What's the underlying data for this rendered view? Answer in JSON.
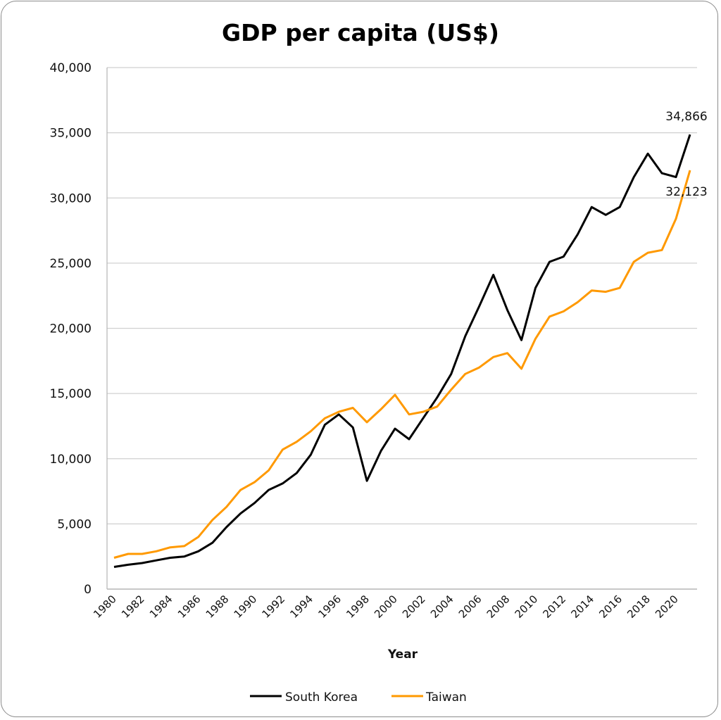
{
  "chart_data": {
    "type": "line",
    "title": "GDP per capita (US$)",
    "xlabel": "Year",
    "ylabel": "",
    "ylim": [
      0,
      40000
    ],
    "yticks": [
      0,
      5000,
      10000,
      15000,
      20000,
      25000,
      30000,
      35000,
      40000
    ],
    "ytick_labels": [
      "0",
      "5,000",
      "10,000",
      "15,000",
      "20,000",
      "25,000",
      "30,000",
      "35,000",
      "40,000"
    ],
    "xlim": [
      1980,
      2021
    ],
    "xtick_labels": [
      "1980",
      "1982",
      "1984",
      "1986",
      "1988",
      "1990",
      "1992",
      "1994",
      "1996",
      "1998",
      "2000",
      "2002",
      "2004",
      "2006",
      "2008",
      "2010",
      "2012",
      "2014",
      "2016",
      "2018",
      "2020"
    ],
    "grid": "horizontal",
    "legend_position": "bottom",
    "x": [
      1980,
      1981,
      1982,
      1983,
      1984,
      1985,
      1986,
      1987,
      1988,
      1989,
      1990,
      1991,
      1992,
      1993,
      1994,
      1995,
      1996,
      1997,
      1998,
      1999,
      2000,
      2001,
      2002,
      2003,
      2004,
      2005,
      2006,
      2007,
      2008,
      2009,
      2010,
      2011,
      2012,
      2013,
      2014,
      2015,
      2016,
      2017,
      2018,
      2019,
      2020,
      2021
    ],
    "series": [
      {
        "name": "South Korea",
        "color": "#000000",
        "values": [
          1700,
          1870,
          2000,
          2200,
          2400,
          2500,
          2900,
          3550,
          4750,
          5800,
          6600,
          7600,
          8100,
          8900,
          10300,
          12600,
          13400,
          12400,
          8300,
          10600,
          12300,
          11500,
          13100,
          14700,
          16500,
          19400,
          21700,
          24100,
          21400,
          19100,
          23100,
          25100,
          25500,
          27200,
          29300,
          28700,
          29300,
          31600,
          33400,
          31900,
          31600,
          34866
        ],
        "end_label": "34,866"
      },
      {
        "name": "Taiwan",
        "color": "#FF9900",
        "values": [
          2400,
          2700,
          2700,
          2900,
          3200,
          3300,
          4000,
          5300,
          6300,
          7600,
          8200,
          9100,
          10700,
          11300,
          12100,
          13100,
          13600,
          13900,
          12800,
          13800,
          14900,
          13400,
          13600,
          14000,
          15300,
          16500,
          17000,
          17800,
          18100,
          16900,
          19200,
          20900,
          21300,
          22000,
          22900,
          22800,
          23100,
          25100,
          25800,
          26000,
          28400,
          32123
        ],
        "end_label": "32,123"
      }
    ]
  },
  "colors": {
    "gridline": "#d0d0d0",
    "axis": "#b5b5b5",
    "frame": "#8c8c8c"
  }
}
